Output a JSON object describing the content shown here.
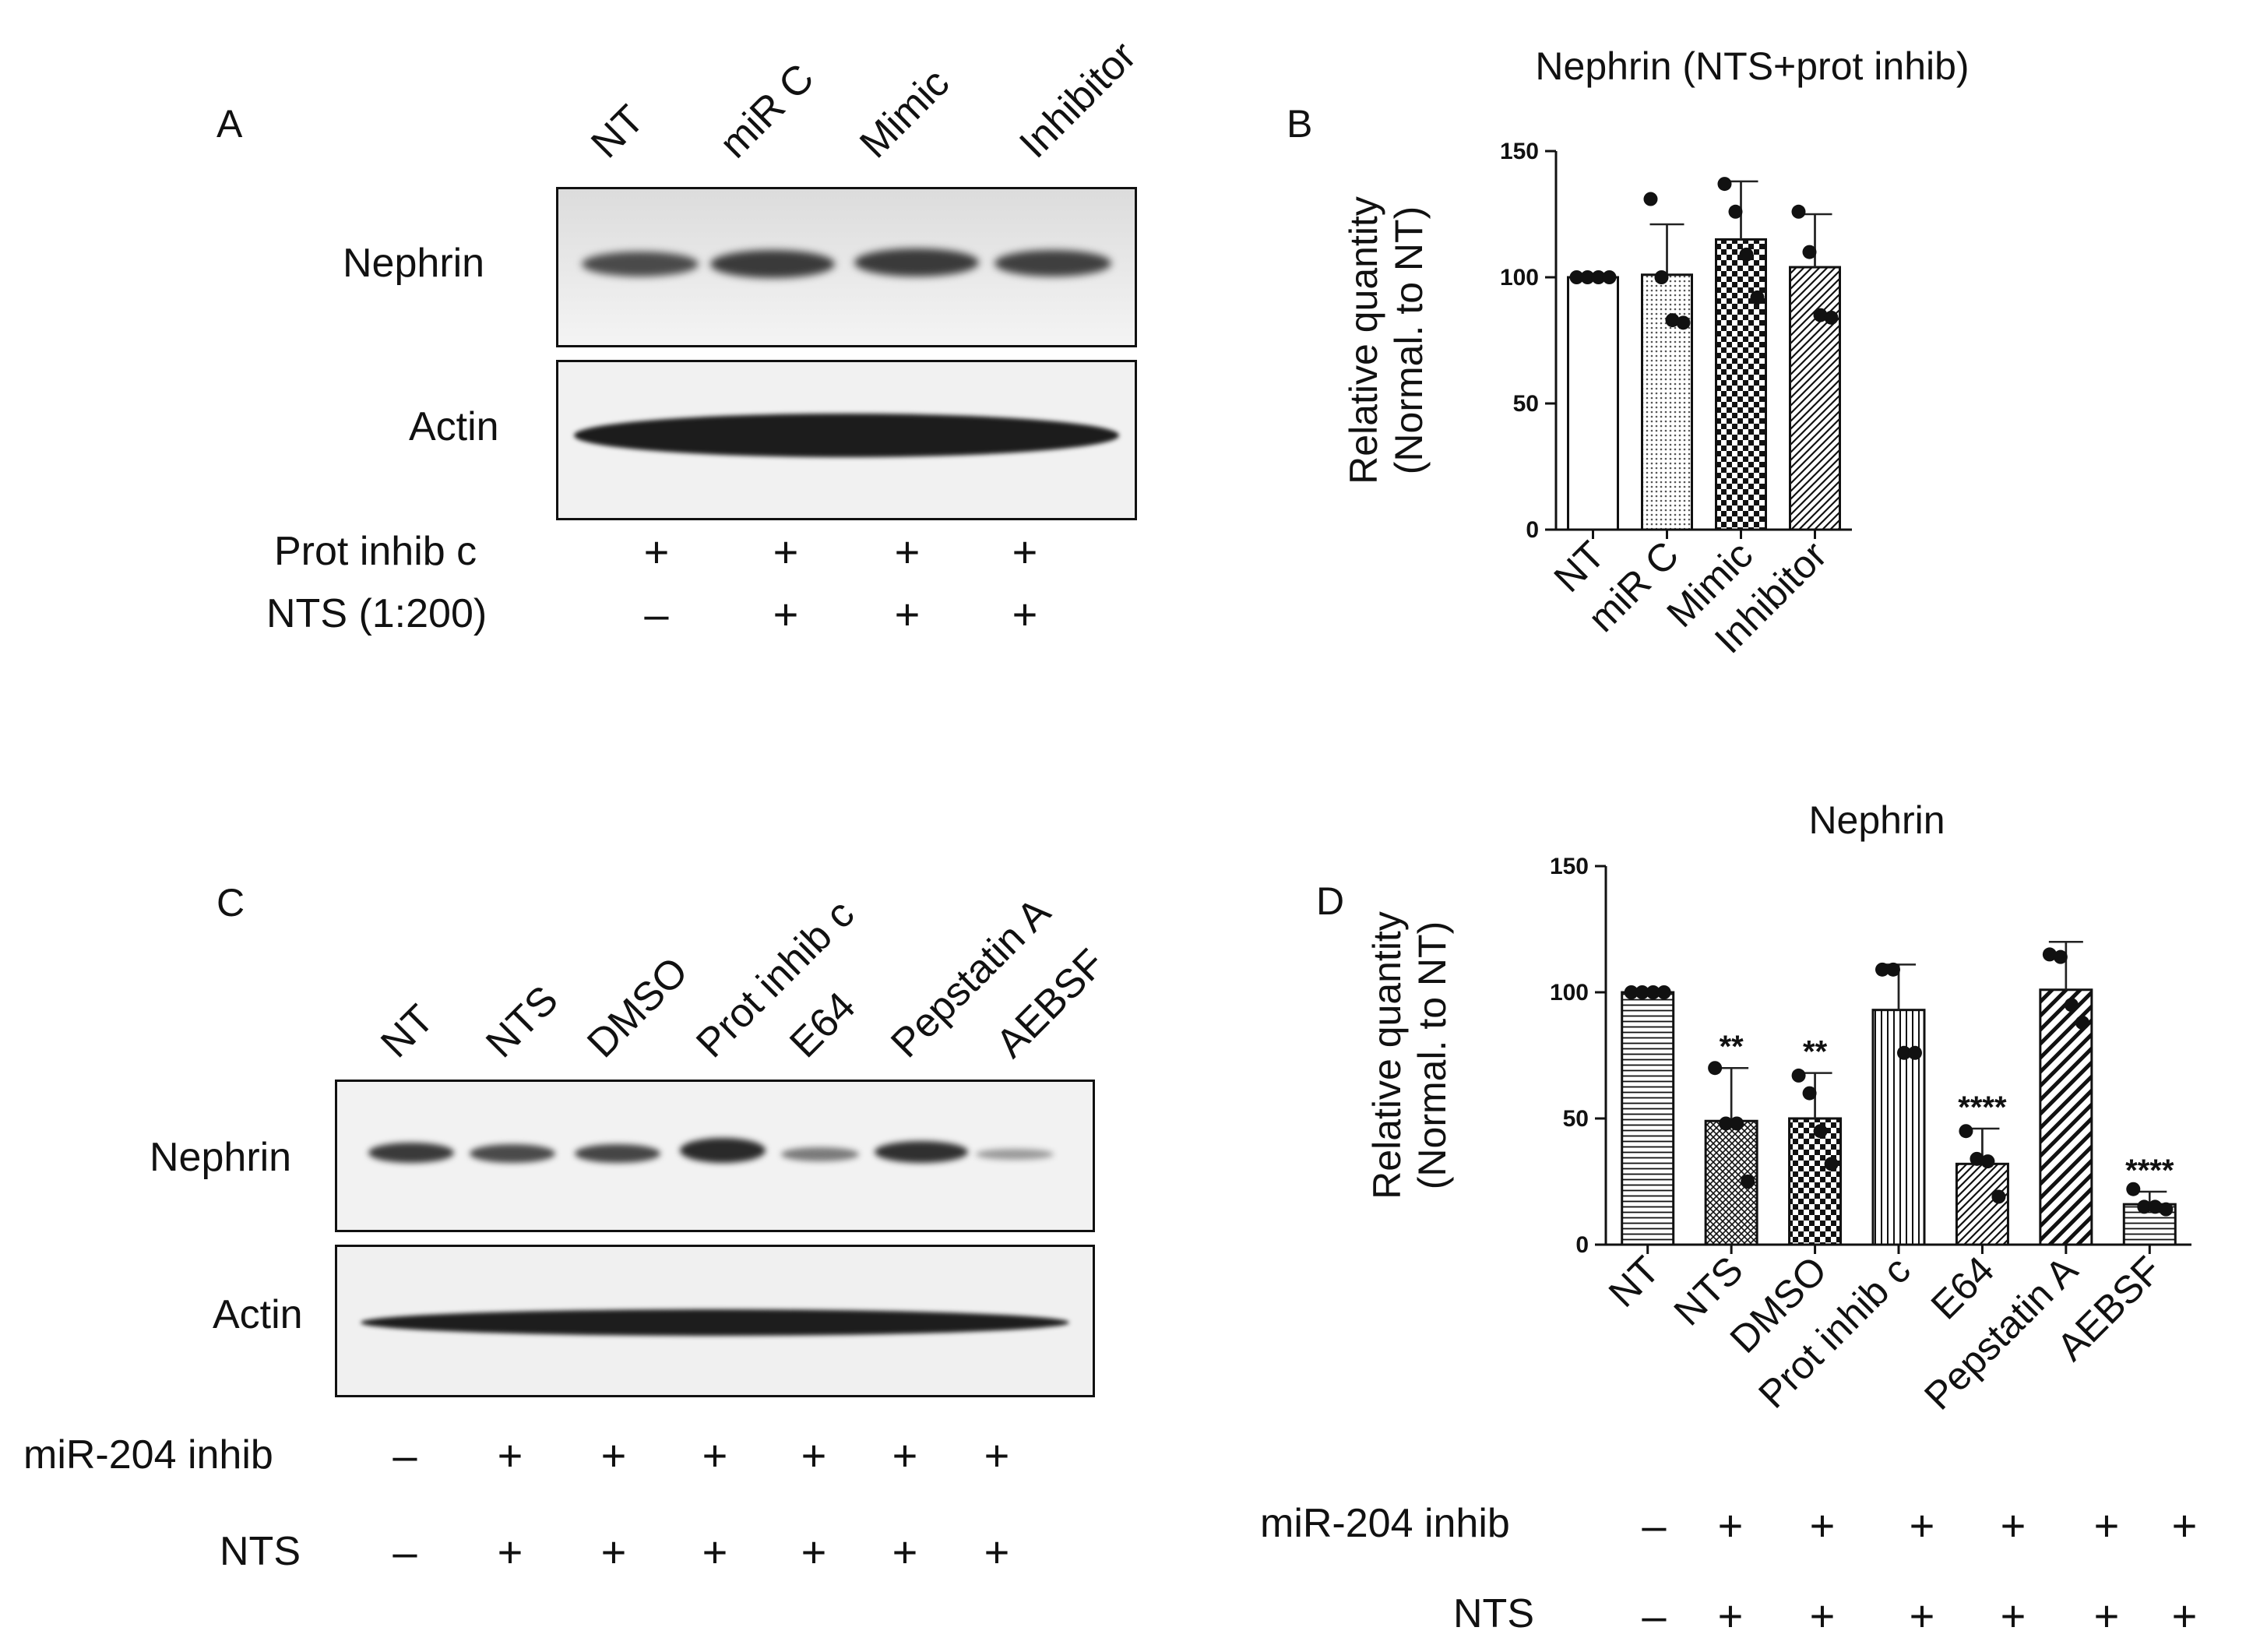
{
  "panelA": {
    "letter": "A",
    "lanes": [
      "NT",
      "miR C",
      "Mimic",
      "Inhibitor"
    ],
    "rows": [
      "Nephrin",
      "Actin"
    ],
    "conditions": [
      {
        "label": "Prot inhib c",
        "signs": [
          "+",
          "+",
          "+",
          "+"
        ]
      },
      {
        "label": "NTS (1:200)",
        "signs": [
          "–",
          "+",
          "+",
          "+"
        ]
      }
    ]
  },
  "panelC": {
    "letter": "C",
    "lanes": [
      "NT",
      "NTS",
      "DMSO",
      "Prot inhib c",
      "E64",
      "Pepstatin A",
      "AEBSF"
    ],
    "rows": [
      "Nephrin",
      "Actin"
    ],
    "conditions": [
      {
        "label": "miR-204 inhib",
        "signs": [
          "–",
          "+",
          "+",
          "+",
          "+",
          "+",
          "+"
        ]
      },
      {
        "label": "NTS",
        "signs": [
          "–",
          "+",
          "+",
          "+",
          "+",
          "+",
          "+"
        ]
      }
    ]
  },
  "panelB": {
    "letter": "B"
  },
  "panelD": {
    "letter": "D",
    "conditions": [
      {
        "label": "miR-204 inhib",
        "signs": [
          "–",
          "+",
          "+",
          "+",
          "+",
          "+",
          "+"
        ]
      },
      {
        "label": "NTS",
        "signs": [
          "–",
          "+",
          "+",
          "+",
          "+",
          "+",
          "+"
        ]
      }
    ]
  },
  "chart_data": [
    {
      "type": "bar",
      "title": "Nephrin (NTS+prot inhib)",
      "ylabel": "Relative quantity (Normal. to NT)",
      "xlabel": "",
      "ylim": [
        0,
        150
      ],
      "yticks": [
        0,
        50,
        100,
        150
      ],
      "categories": [
        "NT",
        "miR C",
        "Mimic",
        "Inhibitor"
      ],
      "values": [
        100,
        101,
        115,
        104
      ],
      "errors": [
        0,
        20,
        23,
        21
      ],
      "patterns": [
        "white",
        "dots",
        "checker",
        "diagonal"
      ],
      "points": [
        [
          100,
          100,
          100,
          100
        ],
        [
          131,
          100,
          83,
          82
        ],
        [
          137,
          126,
          109,
          92
        ],
        [
          126,
          110,
          85,
          84
        ]
      ],
      "significance": [
        "",
        "",
        "",
        ""
      ]
    },
    {
      "type": "bar",
      "title": "Nephrin",
      "ylabel": "Relative quantity (Normal. to NT)",
      "xlabel": "",
      "ylim": [
        0,
        150
      ],
      "yticks": [
        0,
        50,
        100,
        150
      ],
      "categories": [
        "NT",
        "NTS",
        "DMSO",
        "Prot inhib c",
        "E64",
        "Pepstatin A",
        "AEBSF"
      ],
      "values": [
        100,
        49,
        50,
        93,
        32,
        101,
        16
      ],
      "errors": [
        0,
        21,
        18,
        18,
        14,
        19,
        5
      ],
      "patterns": [
        "hlines",
        "crosshatch",
        "checker",
        "vlines",
        "diagonal",
        "bigdiagonal",
        "hlines"
      ],
      "points": [
        [
          100,
          100,
          100,
          100
        ],
        [
          70,
          48,
          48,
          25
        ],
        [
          67,
          60,
          45,
          32
        ],
        [
          109,
          109,
          76,
          76
        ],
        [
          45,
          34,
          33,
          19
        ],
        [
          115,
          114,
          95,
          88
        ],
        [
          22,
          15,
          15,
          14
        ]
      ],
      "significance": [
        "",
        "**",
        "**",
        "",
        "****",
        "",
        "****"
      ]
    }
  ]
}
